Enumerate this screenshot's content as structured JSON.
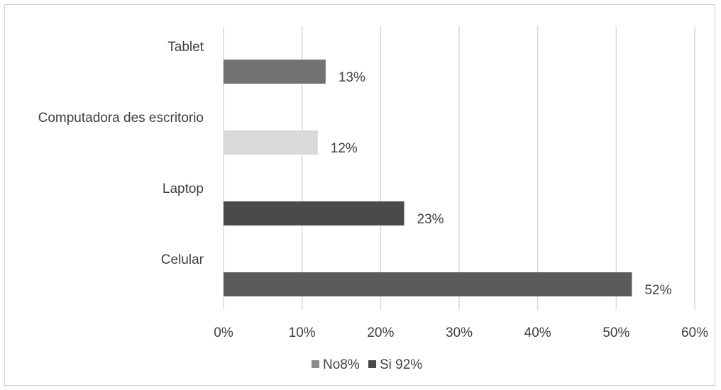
{
  "chart_data": {
    "type": "bar",
    "orientation": "horizontal",
    "categories": [
      "Celular",
      "Laptop",
      "Computadora des escritorio",
      "Tablet"
    ],
    "values": [
      0.52,
      0.23,
      0.12,
      0.13
    ],
    "data_labels": [
      "52%",
      "23%",
      "12%",
      "13%"
    ],
    "bar_colors": [
      "#5b5b5b",
      "#4a4a4a",
      "#d9d9d9",
      "#727272"
    ],
    "xlim": [
      0,
      0.6
    ],
    "x_ticks": [
      0,
      0.1,
      0.2,
      0.3,
      0.4,
      0.5,
      0.6
    ],
    "x_tick_labels": [
      "0%",
      "10%",
      "20%",
      "30%",
      "40%",
      "50%",
      "60%"
    ],
    "grid": "vertical",
    "legend_position": "bottom",
    "legend": [
      {
        "label": "No8%",
        "color": "#8c8c8c"
      },
      {
        "label": "Si 92%",
        "color": "#4a4a4a"
      }
    ]
  }
}
